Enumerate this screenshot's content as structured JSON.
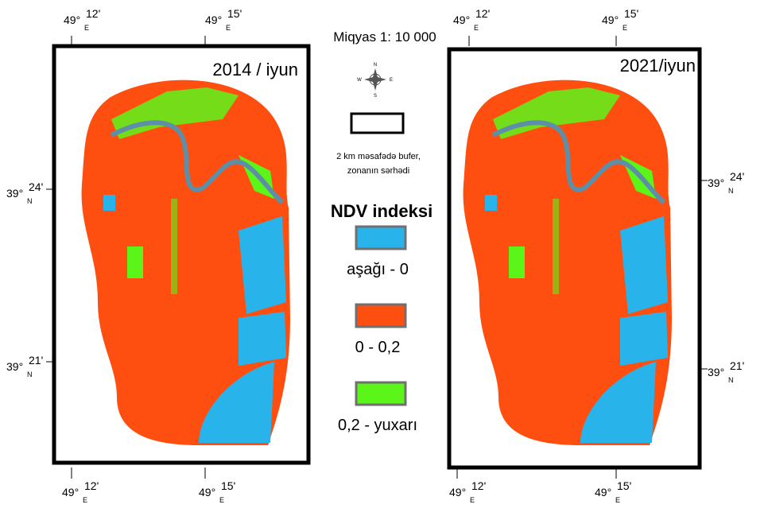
{
  "maps": [
    {
      "title": "2014 / iyun",
      "top_labels": [
        {
          "deg": "49°",
          "min": "12'",
          "hemi": "E"
        },
        {
          "deg": "49°",
          "min": "15'",
          "hemi": "E"
        }
      ],
      "bottom_labels": [
        {
          "deg": "49°",
          "min": "12'",
          "hemi": "E"
        },
        {
          "deg": "49°",
          "min": "15'",
          "hemi": "E"
        }
      ],
      "side_labels": [
        {
          "deg": "39°",
          "min": "24'",
          "hemi": "N"
        },
        {
          "deg": "39°",
          "min": "21'",
          "hemi": "N"
        }
      ]
    },
    {
      "title": "2021/iyun",
      "top_labels": [
        {
          "deg": "49°",
          "min": "12'",
          "hemi": "E"
        },
        {
          "deg": "49°",
          "min": "15'",
          "hemi": "E"
        }
      ],
      "bottom_labels": [
        {
          "deg": "49°",
          "min": "12'",
          "hemi": "E"
        },
        {
          "deg": "49°",
          "min": "15'",
          "hemi": "E"
        }
      ],
      "side_labels": [
        {
          "deg": "39°",
          "min": "24'",
          "hemi": "N"
        },
        {
          "deg": "39°",
          "min": "21'",
          "hemi": "N"
        }
      ]
    }
  ],
  "legend": {
    "scale": "Miqyas 1: 10 000",
    "compass": {
      "n": "N",
      "s": "S",
      "w": "W",
      "e": "E"
    },
    "buffer_label": [
      "2 km məsafədə bufer,",
      "zonanın sərhədi"
    ],
    "index_title": "NDV indeksi",
    "items": [
      {
        "label": "aşağı - 0"
      },
      {
        "label": "0 - 0,2"
      },
      {
        "label": "0,2 - yuxarı"
      }
    ]
  }
}
